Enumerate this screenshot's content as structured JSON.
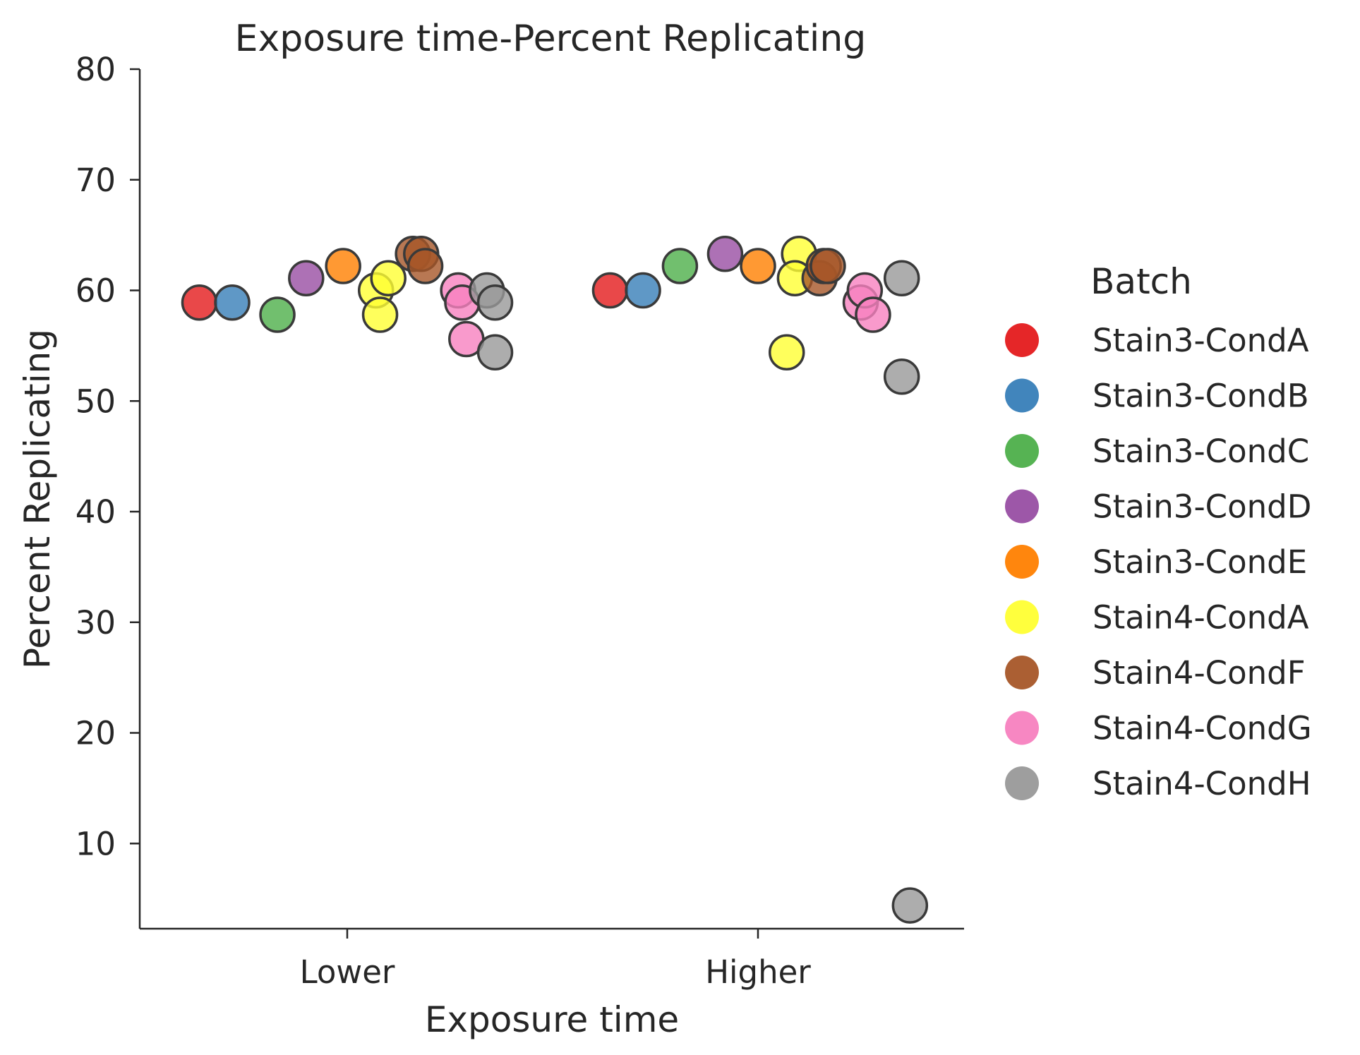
{
  "chart_data": {
    "type": "scatter",
    "title": "Exposure time-Percent Replicating",
    "xlabel": "Exposure time",
    "ylabel": "Percent Replicating",
    "categories": [
      "Lower",
      "Higher"
    ],
    "y_ticks": [
      10,
      20,
      30,
      40,
      50,
      60,
      70,
      80
    ],
    "ylim": [
      2.3,
      80
    ],
    "grid": false,
    "legend": {
      "title": "Batch",
      "placement": "right"
    },
    "series": [
      {
        "name": "Stain3-CondA",
        "color": "#e41a1c",
        "points": [
          {
            "category": "Lower",
            "offset": -0.36,
            "y": 58.9
          },
          {
            "category": "Higher",
            "offset": -0.36,
            "y": 60.0
          }
        ]
      },
      {
        "name": "Stain3-CondB",
        "color": "#377eb8",
        "points": [
          {
            "category": "Lower",
            "offset": -0.28,
            "y": 58.9
          },
          {
            "category": "Higher",
            "offset": -0.28,
            "y": 60.0
          }
        ]
      },
      {
        "name": "Stain3-CondC",
        "color": "#4daf4a",
        "points": [
          {
            "category": "Lower",
            "offset": -0.17,
            "y": 57.8
          },
          {
            "category": "Higher",
            "offset": -0.19,
            "y": 62.2
          }
        ]
      },
      {
        "name": "Stain3-CondD",
        "color": "#984ea3",
        "points": [
          {
            "category": "Lower",
            "offset": -0.1,
            "y": 61.1
          },
          {
            "category": "Higher",
            "offset": -0.08,
            "y": 63.3
          }
        ]
      },
      {
        "name": "Stain3-CondE",
        "color": "#ff7f00",
        "points": [
          {
            "category": "Lower",
            "offset": -0.01,
            "y": 62.2
          },
          {
            "category": "Higher",
            "offset": 0.0,
            "y": 62.2
          }
        ]
      },
      {
        "name": "Stain4-CondA",
        "color": "#ffff33",
        "points": [
          {
            "category": "Lower",
            "offset": 0.07,
            "y": 60.0
          },
          {
            "category": "Lower",
            "offset": 0.1,
            "y": 61.1
          },
          {
            "category": "Lower",
            "offset": 0.08,
            "y": 57.8
          },
          {
            "category": "Higher",
            "offset": 0.07,
            "y": 54.4
          },
          {
            "category": "Higher",
            "offset": 0.1,
            "y": 63.3
          },
          {
            "category": "Higher",
            "offset": 0.09,
            "y": 61.1
          }
        ]
      },
      {
        "name": "Stain4-CondF",
        "color": "#a65628",
        "points": [
          {
            "category": "Lower",
            "offset": 0.16,
            "y": 63.3
          },
          {
            "category": "Lower",
            "offset": 0.18,
            "y": 63.3
          },
          {
            "category": "Lower",
            "offset": 0.19,
            "y": 62.2
          },
          {
            "category": "Higher",
            "offset": 0.15,
            "y": 61.1
          },
          {
            "category": "Higher",
            "offset": 0.16,
            "y": 62.2
          },
          {
            "category": "Higher",
            "offset": 0.17,
            "y": 62.2
          }
        ]
      },
      {
        "name": "Stain4-CondG",
        "color": "#f781bf",
        "points": [
          {
            "category": "Lower",
            "offset": 0.27,
            "y": 60.0
          },
          {
            "category": "Lower",
            "offset": 0.28,
            "y": 58.9
          },
          {
            "category": "Lower",
            "offset": 0.29,
            "y": 55.6
          },
          {
            "category": "Higher",
            "offset": 0.25,
            "y": 58.9
          },
          {
            "category": "Higher",
            "offset": 0.26,
            "y": 60.0
          },
          {
            "category": "Higher",
            "offset": 0.28,
            "y": 57.8
          }
        ]
      },
      {
        "name": "Stain4-CondH",
        "color": "#999999",
        "points": [
          {
            "category": "Lower",
            "offset": 0.34,
            "y": 60.0
          },
          {
            "category": "Lower",
            "offset": 0.36,
            "y": 58.9
          },
          {
            "category": "Lower",
            "offset": 0.36,
            "y": 54.4
          },
          {
            "category": "Higher",
            "offset": 0.35,
            "y": 61.1
          },
          {
            "category": "Higher",
            "offset": 0.35,
            "y": 52.2
          },
          {
            "category": "Higher",
            "offset": 0.37,
            "y": 4.4
          }
        ]
      }
    ]
  }
}
